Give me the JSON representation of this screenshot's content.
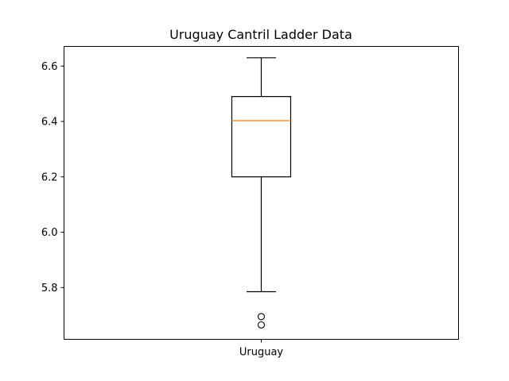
{
  "chart_data": {
    "type": "box",
    "title": "Uruguay Cantril Ladder Data",
    "xlabel": "",
    "ylabel": "",
    "categories": [
      "Uruguay"
    ],
    "ylim": [
      5.613,
      6.671
    ],
    "y_ticks": [
      5.8,
      6.0,
      6.2,
      6.4,
      6.6
    ],
    "y_tick_labels": [
      "5.8",
      "6.0",
      "6.2",
      "6.4",
      "6.6"
    ],
    "grid": false,
    "legend": "none",
    "boxes": [
      {
        "name": "Uruguay",
        "whisker_low": 5.785,
        "q1": 6.2,
        "median": 6.403,
        "q3": 6.49,
        "whisker_high": 6.63,
        "outliers": [
          5.695,
          5.665
        ]
      }
    ],
    "colors": {
      "box": "#000000",
      "median": "#ff7f0e",
      "whisker": "#000000",
      "outlier": "#000000"
    }
  }
}
